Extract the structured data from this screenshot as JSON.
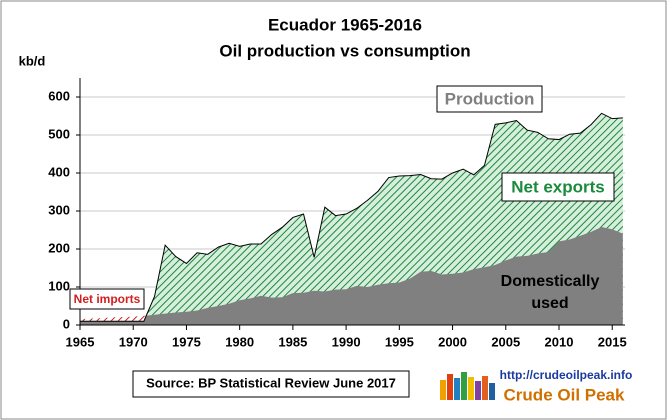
{
  "chart_data": {
    "type": "area",
    "title": "Ecuador 1965-2016",
    "subtitle": "Oil production vs consumption",
    "y_label": "kb/d",
    "x": [
      1965,
      1966,
      1967,
      1968,
      1969,
      1970,
      1971,
      1972,
      1973,
      1974,
      1975,
      1976,
      1977,
      1978,
      1979,
      1980,
      1981,
      1982,
      1983,
      1984,
      1985,
      1986,
      1987,
      1988,
      1989,
      1990,
      1991,
      1992,
      1993,
      1994,
      1995,
      1996,
      1997,
      1998,
      1999,
      2000,
      2001,
      2002,
      2003,
      2004,
      2005,
      2006,
      2007,
      2008,
      2009,
      2010,
      2011,
      2012,
      2013,
      2014,
      2015,
      2016
    ],
    "series": [
      {
        "name": "Production",
        "color": "#1a8a3c",
        "values": [
          10,
          10,
          10,
          10,
          10,
          10,
          10,
          75,
          210,
          180,
          162,
          190,
          186,
          205,
          215,
          207,
          213,
          213,
          238,
          257,
          283,
          292,
          178,
          310,
          288,
          292,
          307,
          328,
          352,
          388,
          392,
          393,
          396,
          385,
          384,
          400,
          410,
          395,
          420,
          528,
          532,
          538,
          513,
          507,
          490,
          488,
          502,
          505,
          527,
          557,
          543,
          545
        ]
      },
      {
        "name": "Domestically used",
        "color": "#808080",
        "values": [
          15,
          17,
          18,
          20,
          21,
          22,
          24,
          27,
          30,
          33,
          35,
          38,
          45,
          50,
          56,
          65,
          70,
          77,
          72,
          73,
          84,
          85,
          90,
          88,
          93,
          94,
          103,
          100,
          106,
          110,
          112,
          122,
          140,
          142,
          133,
          135,
          138,
          147,
          152,
          158,
          170,
          180,
          182,
          188,
          192,
          220,
          225,
          235,
          245,
          258,
          252,
          240
        ]
      }
    ],
    "annotations": {
      "net_exports": "Net exports",
      "net_imports": "Net imports",
      "source": "Source: BP Statistical Review  June 2017",
      "logo_url": "http://crudeoilpeak.info",
      "logo_name": "Crude Oil Peak"
    },
    "xlim": [
      1965,
      2016.2
    ],
    "xticks": [
      1965,
      1970,
      1975,
      1980,
      1985,
      1990,
      1995,
      2000,
      2005,
      2010,
      2015
    ],
    "ylim": [
      0,
      650
    ],
    "yticks": [
      0,
      100,
      200,
      300,
      400,
      500,
      600
    ],
    "grid": true
  }
}
